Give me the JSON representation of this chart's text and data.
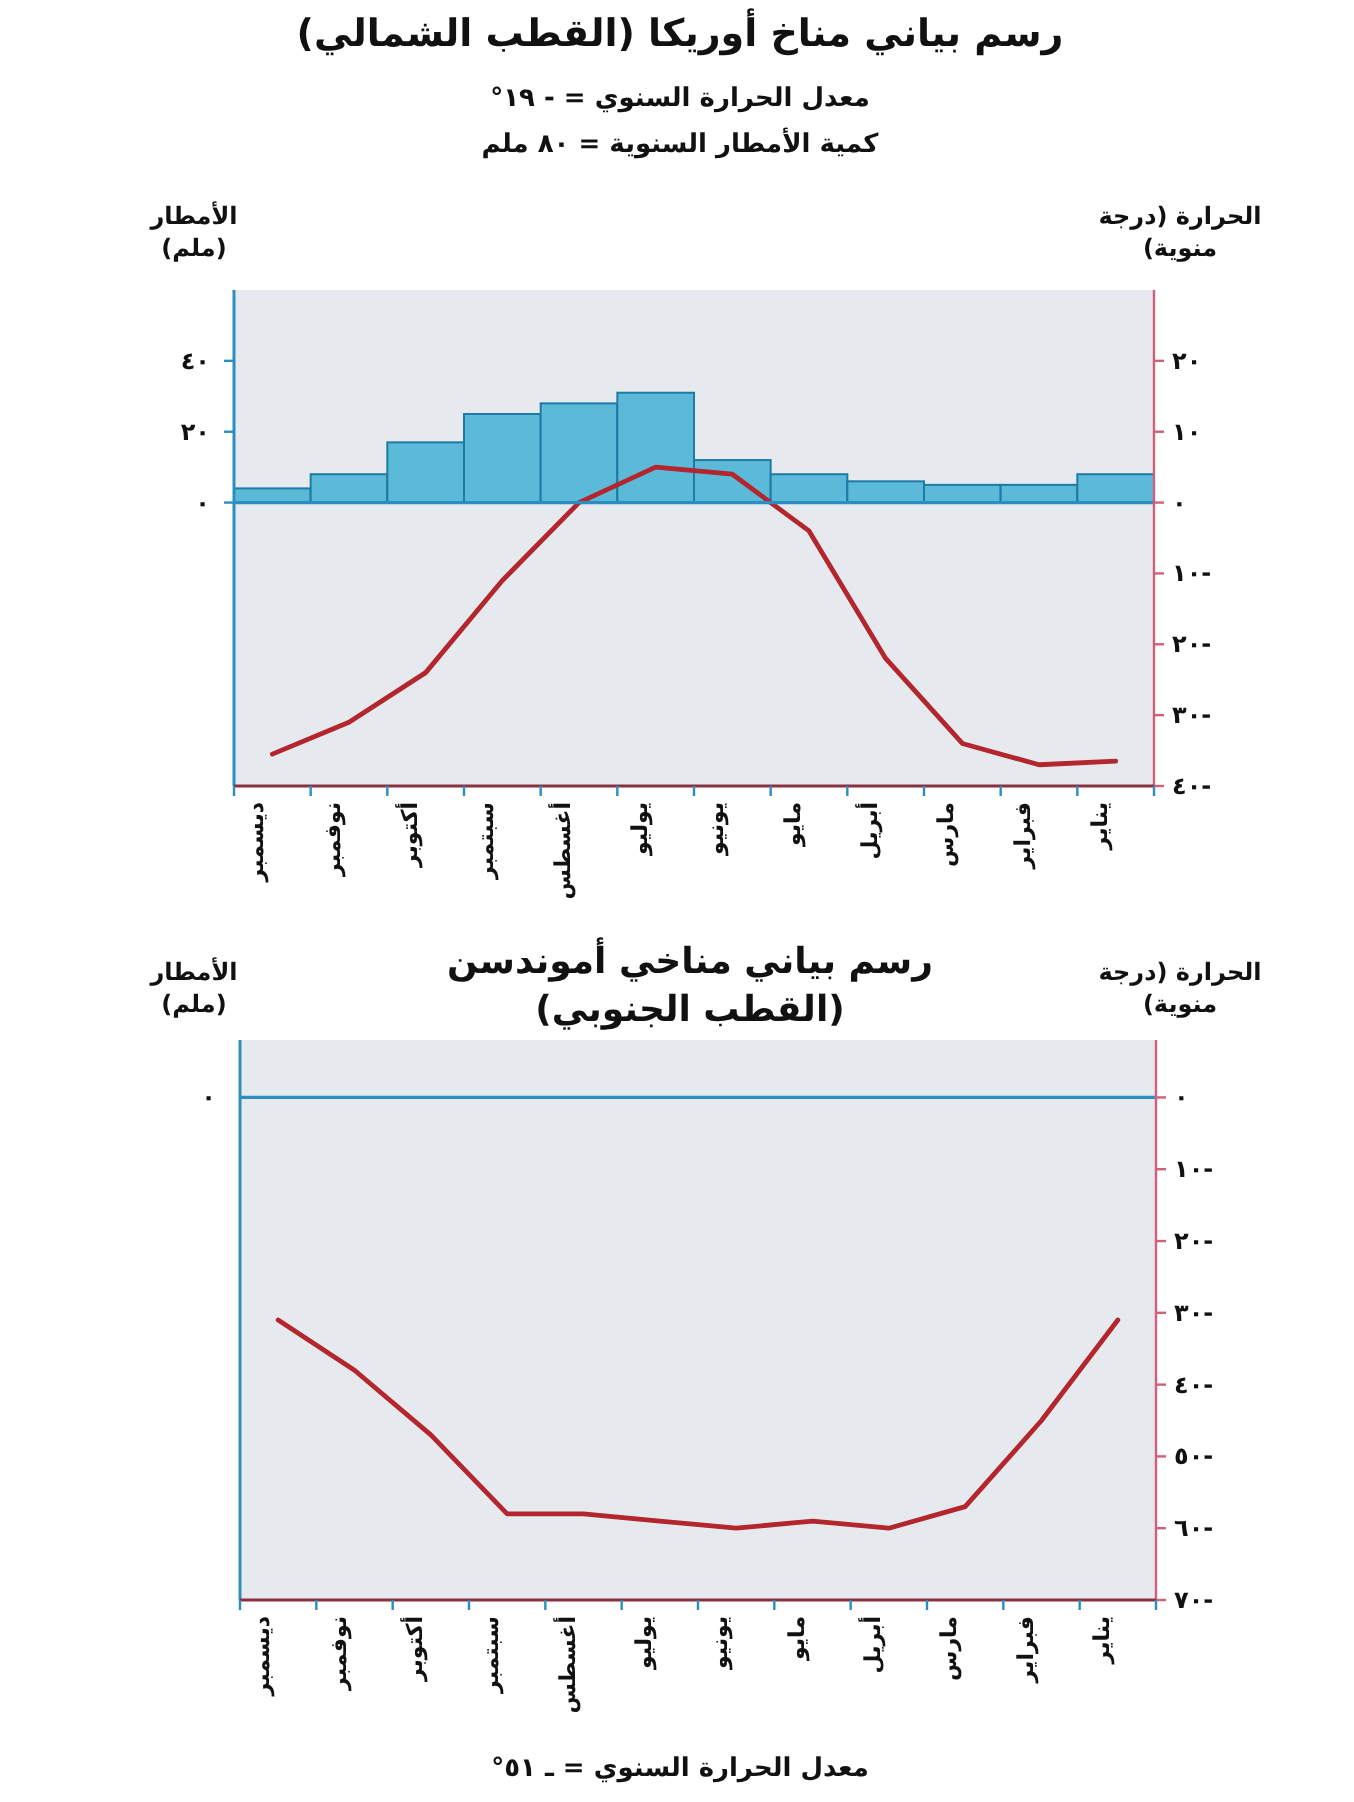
{
  "chart_data": [
    {
      "type": "bar",
      "title": "رسم بياني مناخ أوريكا (القطب الشمالي)",
      "subtitle": "معدل الحرارة السنوي = - ١٩°",
      "annotations": [
        "كمية الأمطار السنوية = ٨٠ ملم"
      ],
      "categories": [
        "ديسمبر",
        "نوفمبر",
        "أكتوبر",
        "سبتمبر",
        "أغسطس",
        "يوليو",
        "يونيو",
        "مايو",
        "أبريل",
        "مارس",
        "فبراير",
        "يناير"
      ],
      "ylabel": "الأمطار (ملم)",
      "y2label": "الحرارة (درجة منوية)",
      "ylim": [
        -80,
        60
      ],
      "yticks": [
        {
          "value": 0,
          "label": "٠"
        },
        {
          "value": 20,
          "label": "٢٠"
        },
        {
          "value": 40,
          "label": "٤٠"
        }
      ],
      "y2lim": [
        -40,
        30
      ],
      "y2ticks": [
        {
          "value": -40,
          "label": "٤٠-"
        },
        {
          "value": -30,
          "label": "٣٠-"
        },
        {
          "value": -20,
          "label": "٢٠-"
        },
        {
          "value": -10,
          "label": "١٠-"
        },
        {
          "value": 0,
          "label": "٠"
        },
        {
          "value": 10,
          "label": "١٠"
        },
        {
          "value": 20,
          "label": "٢٠"
        }
      ],
      "ref_lines": [
        {
          "axis": "y",
          "value": 0,
          "color": "#2a8fc0"
        }
      ],
      "series": [
        {
          "color": "#5bbad8",
          "values": [
            4,
            8,
            17,
            25,
            28,
            31,
            12,
            8,
            6,
            5,
            5,
            8
          ]
        },
        {
          "type": "line",
          "axis": "y2",
          "color": "#b3262e",
          "values": [
            -35.5,
            -31,
            -24,
            -11,
            0,
            5,
            4,
            -4,
            -22,
            -34,
            -37,
            -36.5
          ]
        }
      ]
    },
    {
      "type": "line",
      "title": "رسم بياني مناخي أموندسن (القطب الجنوبي)",
      "annotations": [
        "معدل الحرارة السنوي = ـ ٥١°"
      ],
      "categories": [
        "ديسمبر",
        "نوفمبر",
        "أكتوبر",
        "سبتمبر",
        "أغسطس",
        "يوليو",
        "يونيو",
        "مايو",
        "أبريل",
        "مارس",
        "فبراير",
        "يناير"
      ],
      "ylabel": "الأمطار (ملم)",
      "y2label": "الحرارة (درجة منوية)",
      "y2lim": [
        -70,
        8
      ],
      "y2ticks": [
        {
          "value": -70,
          "label": "٧٠-"
        },
        {
          "value": -60,
          "label": "٦٠-"
        },
        {
          "value": -50,
          "label": "٥٠-"
        },
        {
          "value": -40,
          "label": "٤٠-"
        },
        {
          "value": -30,
          "label": "٣٠-"
        },
        {
          "value": -20,
          "label": "٢٠-"
        },
        {
          "value": -10,
          "label": "١٠-"
        },
        {
          "value": 0,
          "label": "٠"
        }
      ],
      "ref_lines": [
        {
          "axis": "y2",
          "value": 0,
          "label": "٠",
          "color": "#2a8fc0"
        }
      ],
      "series": [
        {
          "axis": "y2",
          "color": "#b3262e",
          "values": [
            -31,
            -38,
            -47,
            -58,
            -58,
            -59,
            -60,
            -59,
            -60,
            -57,
            -45,
            -31
          ]
        }
      ]
    }
  ]
}
